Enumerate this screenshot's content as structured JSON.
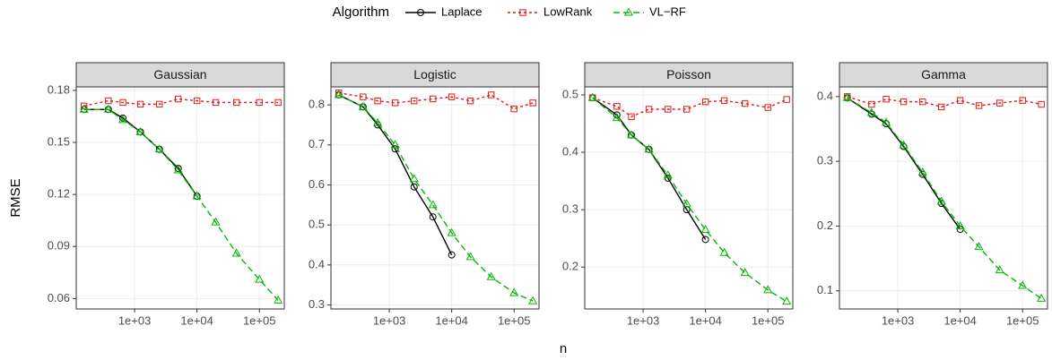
{
  "legend_title": "Algorithm",
  "xlabel": "n",
  "ylabel": "RMSE",
  "chart_data": [
    {
      "type": "line",
      "title": "Gaussian",
      "xlog": true,
      "grid": true,
      "xlim": [
        116,
        251000
      ],
      "ylim": [
        0.054,
        0.182
      ],
      "xticks": [
        {
          "value": 1000,
          "label": "1e+03"
        },
        {
          "value": 10000,
          "label": "1e+04"
        },
        {
          "value": 100000,
          "label": "1e+05"
        }
      ],
      "yticks": [
        0.06,
        0.09,
        0.12,
        0.15,
        0.18
      ],
      "series": [
        {
          "name": "Laplace",
          "color": "#000000",
          "marker": "circle",
          "x": [
            155,
            380,
            650,
            1240,
            2500,
            5000,
            10000
          ],
          "values": [
            0.169,
            0.169,
            0.164,
            0.156,
            0.146,
            0.135,
            0.119
          ]
        },
        {
          "name": "LowRank",
          "color": "#e41a1c",
          "marker": "square",
          "x": [
            155,
            380,
            650,
            1240,
            2500,
            5000,
            10000,
            20000,
            43000,
            100000,
            200000
          ],
          "values": [
            0.171,
            0.174,
            0.173,
            0.172,
            0.172,
            0.175,
            0.174,
            0.173,
            0.173,
            0.173,
            0.173
          ]
        },
        {
          "name": "VL−RF",
          "color": "#00ba00",
          "marker": "triangle",
          "x": [
            155,
            380,
            650,
            1240,
            2500,
            5000,
            10000,
            20000,
            43000,
            100000,
            200000
          ],
          "values": [
            0.169,
            0.169,
            0.163,
            0.156,
            0.146,
            0.134,
            0.119,
            0.104,
            0.086,
            0.071,
            0.059
          ]
        }
      ]
    },
    {
      "type": "line",
      "title": "Logistic",
      "xlog": true,
      "grid": true,
      "xlim": [
        116,
        251000
      ],
      "ylim": [
        0.29,
        0.845
      ],
      "xticks": [
        {
          "value": 1000,
          "label": "1e+03"
        },
        {
          "value": 10000,
          "label": "1e+04"
        },
        {
          "value": 100000,
          "label": "1e+05"
        }
      ],
      "yticks": [
        0.3,
        0.4,
        0.5,
        0.6,
        0.7,
        0.8
      ],
      "series": [
        {
          "name": "Laplace",
          "color": "#000000",
          "marker": "circle",
          "x": [
            155,
            380,
            650,
            1240,
            2500,
            5000,
            10000
          ],
          "values": [
            0.825,
            0.795,
            0.75,
            0.69,
            0.595,
            0.52,
            0.425
          ]
        },
        {
          "name": "LowRank",
          "color": "#e41a1c",
          "marker": "square",
          "x": [
            155,
            380,
            650,
            1240,
            2500,
            5000,
            10000,
            20000,
            43000,
            100000,
            200000
          ],
          "values": [
            0.83,
            0.82,
            0.81,
            0.805,
            0.81,
            0.815,
            0.82,
            0.81,
            0.825,
            0.79,
            0.805
          ]
        },
        {
          "name": "VL−RF",
          "color": "#00ba00",
          "marker": "triangle",
          "x": [
            155,
            380,
            650,
            1240,
            2500,
            5000,
            10000,
            20000,
            43000,
            100000,
            200000
          ],
          "values": [
            0.825,
            0.795,
            0.755,
            0.7,
            0.615,
            0.55,
            0.48,
            0.42,
            0.37,
            0.33,
            0.31
          ]
        }
      ]
    },
    {
      "type": "line",
      "title": "Poisson",
      "xlog": true,
      "grid": true,
      "xlim": [
        116,
        251000
      ],
      "ylim": [
        0.127,
        0.514
      ],
      "xticks": [
        {
          "value": 1000,
          "label": "1e+03"
        },
        {
          "value": 10000,
          "label": "1e+04"
        },
        {
          "value": 100000,
          "label": "1e+05"
        }
      ],
      "yticks": [
        0.2,
        0.3,
        0.4,
        0.5
      ],
      "series": [
        {
          "name": "Laplace",
          "color": "#000000",
          "marker": "circle",
          "x": [
            155,
            380,
            650,
            1240,
            2500,
            5000,
            10000
          ],
          "values": [
            0.495,
            0.465,
            0.43,
            0.405,
            0.355,
            0.3,
            0.248
          ]
        },
        {
          "name": "LowRank",
          "color": "#e41a1c",
          "marker": "square",
          "x": [
            155,
            380,
            650,
            1240,
            2500,
            5000,
            10000,
            20000,
            43000,
            100000,
            200000
          ],
          "values": [
            0.495,
            0.48,
            0.462,
            0.475,
            0.475,
            0.475,
            0.488,
            0.49,
            0.485,
            0.478,
            0.492
          ]
        },
        {
          "name": "VL−RF",
          "color": "#00ba00",
          "marker": "triangle",
          "x": [
            155,
            380,
            650,
            1240,
            2500,
            5000,
            10000,
            20000,
            43000,
            100000,
            200000
          ],
          "values": [
            0.495,
            0.46,
            0.43,
            0.405,
            0.36,
            0.31,
            0.265,
            0.225,
            0.19,
            0.16,
            0.14
          ]
        }
      ]
    },
    {
      "type": "line",
      "title": "Gamma",
      "xlog": true,
      "grid": true,
      "xlim": [
        116,
        251000
      ],
      "ylim": [
        0.072,
        0.415
      ],
      "xticks": [
        {
          "value": 1000,
          "label": "1e+03"
        },
        {
          "value": 10000,
          "label": "1e+04"
        },
        {
          "value": 100000,
          "label": "1e+05"
        }
      ],
      "yticks": [
        0.1,
        0.2,
        0.3,
        0.4
      ],
      "series": [
        {
          "name": "Laplace",
          "color": "#000000",
          "marker": "circle",
          "x": [
            155,
            380,
            650,
            1240,
            2500,
            5000,
            10000
          ],
          "values": [
            0.398,
            0.373,
            0.358,
            0.323,
            0.28,
            0.235,
            0.195
          ]
        },
        {
          "name": "LowRank",
          "color": "#e41a1c",
          "marker": "square",
          "x": [
            155,
            380,
            650,
            1240,
            2500,
            5000,
            10000,
            20000,
            43000,
            100000,
            200000
          ],
          "values": [
            0.4,
            0.388,
            0.396,
            0.392,
            0.392,
            0.384,
            0.394,
            0.386,
            0.39,
            0.394,
            0.388
          ]
        },
        {
          "name": "VL−RF",
          "color": "#00ba00",
          "marker": "triangle",
          "x": [
            155,
            380,
            650,
            1240,
            2500,
            5000,
            10000,
            20000,
            43000,
            100000,
            200000
          ],
          "values": [
            0.398,
            0.375,
            0.36,
            0.325,
            0.283,
            0.238,
            0.2,
            0.168,
            0.132,
            0.108,
            0.088
          ]
        }
      ]
    }
  ]
}
